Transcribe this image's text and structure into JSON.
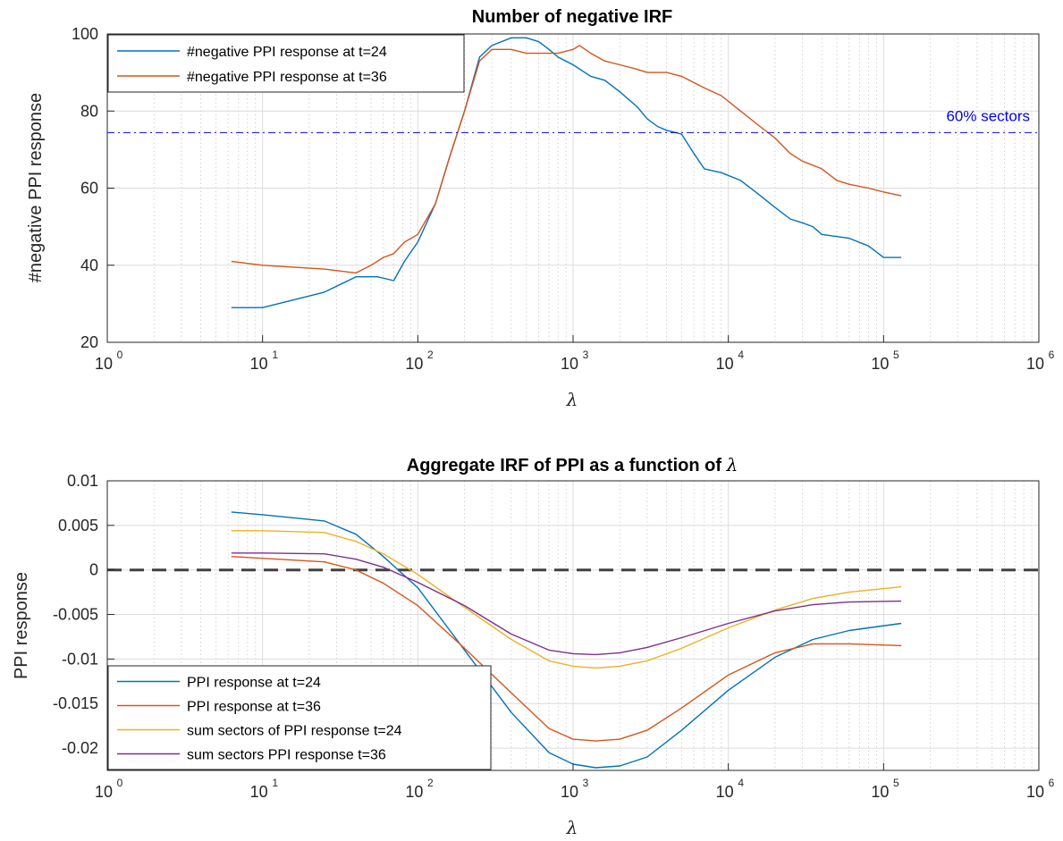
{
  "chart_data": [
    {
      "type": "line",
      "title": "Number of negative IRF",
      "xlabel": "λ",
      "ylabel": "#negative PPI response",
      "xscale": "log",
      "xlim": [
        1,
        1000000
      ],
      "ylim": [
        20,
        100
      ],
      "xticks": [
        "10",
        "10",
        "10",
        "10",
        "10",
        "10",
        "10"
      ],
      "xtick_exponents": [
        "0",
        "1",
        "2",
        "3",
        "4",
        "5",
        "6"
      ],
      "yticks": [
        20,
        40,
        60,
        80,
        100
      ],
      "ytick_labels": [
        "20",
        "40",
        "60",
        "80",
        "100"
      ],
      "grid": true,
      "legend_position": "top-left",
      "series": [
        {
          "name": "#negative PPI response at t=24",
          "color": "#0072BD",
          "x": [
            6.3,
            10,
            25,
            40,
            55,
            70,
            82,
            100,
            130,
            160,
            200,
            250,
            300,
            400,
            500,
            600,
            700,
            800,
            1000,
            1300,
            1600,
            2000,
            2600,
            3000,
            3500,
            4000,
            5000,
            6000,
            7000,
            9000,
            12000,
            15000,
            20000,
            25000,
            30000,
            35000,
            40000,
            60000,
            80000,
            100000,
            130000
          ],
          "y": [
            29,
            29,
            33,
            37,
            37,
            36,
            41,
            46,
            56,
            68,
            80,
            94,
            97,
            99,
            99,
            98,
            96,
            94,
            92,
            89,
            88,
            85,
            81,
            78,
            76,
            75,
            74,
            69,
            65,
            64,
            62,
            59,
            55,
            52,
            51,
            50,
            48,
            47,
            45,
            42,
            42
          ]
        },
        {
          "name": "#negative PPI response at t=36",
          "color": "#D95319",
          "x": [
            6.3,
            10,
            25,
            40,
            50,
            60,
            70,
            82,
            100,
            130,
            160,
            200,
            250,
            300,
            400,
            500,
            600,
            700,
            800,
            1000,
            1100,
            1300,
            1600,
            2000,
            2500,
            3000,
            4000,
            5000,
            7000,
            9000,
            12000,
            16000,
            20000,
            25000,
            30000,
            40000,
            50000,
            60000,
            80000,
            100000,
            130000
          ],
          "y": [
            41,
            40,
            39,
            38,
            40,
            42,
            43,
            46,
            48,
            56,
            68,
            80,
            93,
            96,
            96,
            95,
            95,
            95,
            95,
            96,
            97,
            95,
            93,
            92,
            91,
            90,
            90,
            89,
            86,
            84,
            80,
            76,
            73,
            69,
            67,
            65,
            62,
            61,
            60,
            59,
            58
          ]
        }
      ],
      "annotations": [
        {
          "text": "60% sectors",
          "y": 74.4,
          "color": "#0000ff",
          "style": "dash-dot"
        }
      ]
    },
    {
      "type": "line",
      "title": "Aggregate IRF of PPI as a function of λ",
      "xlabel": "λ",
      "ylabel": "PPI response",
      "xscale": "log",
      "xlim": [
        1,
        1000000
      ],
      "ylim": [
        -0.0225,
        0.01
      ],
      "xticks": [
        "10",
        "10",
        "10",
        "10",
        "10",
        "10",
        "10"
      ],
      "xtick_exponents": [
        "0",
        "1",
        "2",
        "3",
        "4",
        "5",
        "6"
      ],
      "yticks": [
        0.01,
        0.005,
        0,
        -0.005,
        -0.01,
        -0.015,
        -0.02
      ],
      "ytick_labels": [
        "0.01",
        "0.005",
        "0",
        "-0.005",
        "-0.01",
        "-0.015",
        "-0.02"
      ],
      "grid": true,
      "legend_position": "bottom-left",
      "zero_line": {
        "y": 0,
        "color": "#404040",
        "style": "dashed"
      },
      "series": [
        {
          "name": "PPI response at t=24",
          "color": "#0072BD",
          "x": [
            6.3,
            10,
            25,
            40,
            60,
            100,
            200,
            400,
            700,
            1000,
            1400,
            2000,
            3000,
            5000,
            10000,
            20000,
            35000,
            60000,
            130000
          ],
          "y": [
            0.0065,
            0.0062,
            0.0055,
            0.004,
            0.0015,
            -0.002,
            -0.009,
            -0.016,
            -0.0205,
            -0.0218,
            -0.0222,
            -0.022,
            -0.021,
            -0.018,
            -0.0135,
            -0.0098,
            -0.0078,
            -0.0068,
            -0.006
          ]
        },
        {
          "name": "PPI response at t=36",
          "color": "#D95319",
          "x": [
            6.3,
            10,
            25,
            40,
            60,
            100,
            200,
            400,
            700,
            1000,
            1400,
            2000,
            3000,
            5000,
            10000,
            20000,
            35000,
            60000,
            130000
          ],
          "y": [
            0.0015,
            0.0013,
            0.0009,
            0.0,
            -0.0015,
            -0.004,
            -0.0088,
            -0.0138,
            -0.0178,
            -0.019,
            -0.0192,
            -0.019,
            -0.018,
            -0.0155,
            -0.0118,
            -0.0093,
            -0.0083,
            -0.0083,
            -0.0085
          ]
        },
        {
          "name": "sum sectors of PPI response t=24",
          "color": "#EDB120",
          "x": [
            6.3,
            10,
            25,
            40,
            60,
            100,
            200,
            400,
            700,
            1000,
            1400,
            2000,
            3000,
            5000,
            10000,
            20000,
            35000,
            60000,
            130000
          ],
          "y": [
            0.0044,
            0.0044,
            0.0042,
            0.0032,
            0.0018,
            -0.0005,
            -0.0042,
            -0.0078,
            -0.0102,
            -0.0108,
            -0.011,
            -0.0108,
            -0.0102,
            -0.0088,
            -0.0065,
            -0.0045,
            -0.0032,
            -0.0025,
            -0.0019
          ]
        },
        {
          "name": "sum sectors PPI response t=36",
          "color": "#7E2F8E",
          "x": [
            6.3,
            10,
            25,
            40,
            60,
            100,
            200,
            400,
            700,
            1000,
            1400,
            2000,
            3000,
            5000,
            10000,
            20000,
            35000,
            60000,
            130000
          ],
          "y": [
            0.0019,
            0.0019,
            0.0018,
            0.0012,
            0.0003,
            -0.0014,
            -0.004,
            -0.0072,
            -0.009,
            -0.0094,
            -0.0095,
            -0.0093,
            -0.0087,
            -0.0076,
            -0.006,
            -0.0046,
            -0.0039,
            -0.0036,
            -0.0035
          ]
        }
      ]
    }
  ]
}
